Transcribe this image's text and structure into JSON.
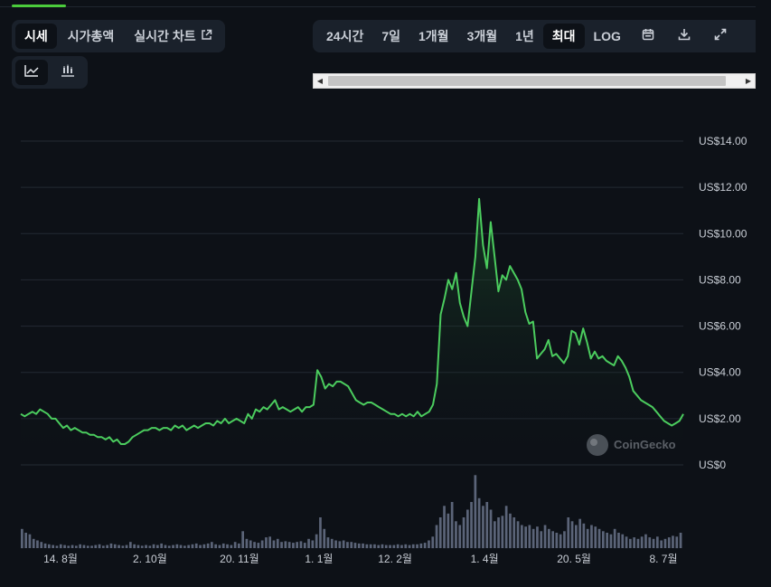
{
  "tabs": [
    {
      "label": "시세",
      "active": true
    },
    {
      "label": "시가총액",
      "active": false
    },
    {
      "label": "실시간 차트",
      "active": false,
      "icon": "external-link-icon"
    }
  ],
  "chart_types": [
    {
      "icon": "line-chart-icon",
      "active": true
    },
    {
      "icon": "candlestick-chart-icon",
      "active": false
    }
  ],
  "ranges": [
    {
      "label": "24시간",
      "active": false
    },
    {
      "label": "7일",
      "active": false
    },
    {
      "label": "1개월",
      "active": false
    },
    {
      "label": "3개월",
      "active": false
    },
    {
      "label": "1년",
      "active": false
    },
    {
      "label": "최대",
      "active": true
    },
    {
      "label": "LOG",
      "active": false
    }
  ],
  "range_icons": [
    "calendar-icon",
    "download-icon",
    "expand-icon"
  ],
  "watermark": "CoinGecko",
  "colors": {
    "line": "#4bcc5e",
    "fill_top": "#1f5a2f",
    "grid": "#232a33",
    "volume": "#5b6478",
    "background": "#0d1117"
  },
  "chart_data": {
    "type": "area",
    "ylabel_prefix": "US$",
    "ylim": [
      0,
      14
    ],
    "yticks": [
      "US$14.00",
      "US$12.00",
      "US$10.00",
      "US$8.00",
      "US$6.00",
      "US$4.00",
      "US$2.00",
      "US$0"
    ],
    "ytick_values": [
      14,
      12,
      10,
      8,
      6,
      4,
      2,
      0
    ],
    "xticks": [
      "14. 8월",
      "2. 10월",
      "20. 11월",
      "1. 1월",
      "12. 2월",
      "1. 4월",
      "20. 5월",
      "8. 7월"
    ],
    "xtick_positions": [
      0.06,
      0.195,
      0.33,
      0.45,
      0.565,
      0.7,
      0.835,
      0.97
    ],
    "series": [
      {
        "values": [
          2.2,
          2.1,
          2.2,
          2.3,
          2.2,
          2.4,
          2.3,
          2.2,
          2.0,
          2.0,
          1.8,
          1.6,
          1.7,
          1.5,
          1.6,
          1.5,
          1.4,
          1.4,
          1.3,
          1.3,
          1.2,
          1.2,
          1.1,
          1.2,
          1.0,
          1.1,
          0.9,
          0.9,
          1.0,
          1.2,
          1.3,
          1.4,
          1.5,
          1.5,
          1.6,
          1.6,
          1.5,
          1.6,
          1.6,
          1.5,
          1.7,
          1.6,
          1.7,
          1.5,
          1.6,
          1.7,
          1.6,
          1.7,
          1.8,
          1.8,
          1.7,
          1.9,
          1.8,
          2.0,
          1.8,
          1.9,
          2.0,
          1.9,
          1.8,
          2.2,
          2.0,
          2.4,
          2.3,
          2.5,
          2.4,
          2.6,
          2.8,
          2.4,
          2.5,
          2.4,
          2.3,
          2.4,
          2.5,
          2.3,
          2.5,
          2.5,
          2.6,
          4.1,
          3.8,
          3.3,
          3.5,
          3.4,
          3.6,
          3.6,
          3.5,
          3.4,
          3.1,
          2.8,
          2.7,
          2.6,
          2.7,
          2.7,
          2.6,
          2.5,
          2.4,
          2.3,
          2.2,
          2.2,
          2.1,
          2.2,
          2.1,
          2.2,
          2.1,
          2.3,
          2.1,
          2.2,
          2.3,
          2.6,
          3.5,
          6.5,
          7.2,
          8.0,
          7.6,
          8.3,
          7.0,
          6.4,
          6.0,
          7.5,
          9.0,
          11.5,
          9.5,
          8.5,
          10.5,
          9.0,
          7.5,
          8.2,
          8.0,
          8.6,
          8.3,
          8.0,
          7.6,
          6.6,
          6.1,
          6.2,
          4.6,
          4.8,
          5.0,
          5.4,
          4.7,
          4.8,
          4.6,
          4.4,
          4.7,
          5.8,
          5.7,
          5.2,
          5.9,
          5.3,
          4.6,
          4.9,
          4.6,
          4.7,
          4.5,
          4.4,
          4.3,
          4.7,
          4.5,
          4.2,
          3.8,
          3.2,
          3.0,
          2.8,
          2.7,
          2.6,
          2.5,
          2.3,
          2.1,
          1.9,
          1.8,
          1.7,
          1.8,
          1.9,
          2.2
        ]
      }
    ],
    "volume": [
      0.25,
      0.2,
      0.18,
      0.12,
      0.1,
      0.08,
      0.06,
      0.05,
      0.04,
      0.03,
      0.05,
      0.04,
      0.03,
      0.04,
      0.03,
      0.05,
      0.04,
      0.03,
      0.03,
      0.04,
      0.05,
      0.03,
      0.04,
      0.06,
      0.05,
      0.04,
      0.03,
      0.04,
      0.08,
      0.05,
      0.04,
      0.03,
      0.04,
      0.03,
      0.05,
      0.04,
      0.06,
      0.04,
      0.03,
      0.04,
      0.05,
      0.04,
      0.03,
      0.04,
      0.05,
      0.06,
      0.04,
      0.05,
      0.06,
      0.08,
      0.05,
      0.04,
      0.06,
      0.05,
      0.04,
      0.08,
      0.06,
      0.22,
      0.12,
      0.1,
      0.08,
      0.07,
      0.1,
      0.14,
      0.15,
      0.1,
      0.12,
      0.08,
      0.09,
      0.08,
      0.07,
      0.08,
      0.09,
      0.07,
      0.12,
      0.1,
      0.18,
      0.4,
      0.25,
      0.14,
      0.12,
      0.1,
      0.09,
      0.1,
      0.08,
      0.08,
      0.07,
      0.06,
      0.06,
      0.05,
      0.05,
      0.05,
      0.04,
      0.05,
      0.04,
      0.04,
      0.04,
      0.05,
      0.04,
      0.05,
      0.04,
      0.05,
      0.05,
      0.06,
      0.07,
      0.1,
      0.15,
      0.3,
      0.4,
      0.55,
      0.45,
      0.6,
      0.35,
      0.3,
      0.4,
      0.5,
      0.6,
      0.95,
      0.65,
      0.55,
      0.6,
      0.5,
      0.35,
      0.4,
      0.42,
      0.55,
      0.45,
      0.4,
      0.35,
      0.3,
      0.28,
      0.3,
      0.25,
      0.28,
      0.22,
      0.3,
      0.25,
      0.22,
      0.2,
      0.18,
      0.22,
      0.4,
      0.35,
      0.3,
      0.38,
      0.32,
      0.25,
      0.3,
      0.28,
      0.25,
      0.22,
      0.2,
      0.18,
      0.25,
      0.2,
      0.18,
      0.15,
      0.12,
      0.14,
      0.12,
      0.15,
      0.18,
      0.14,
      0.12,
      0.15,
      0.1,
      0.12,
      0.14,
      0.16,
      0.15,
      0.2
    ]
  }
}
